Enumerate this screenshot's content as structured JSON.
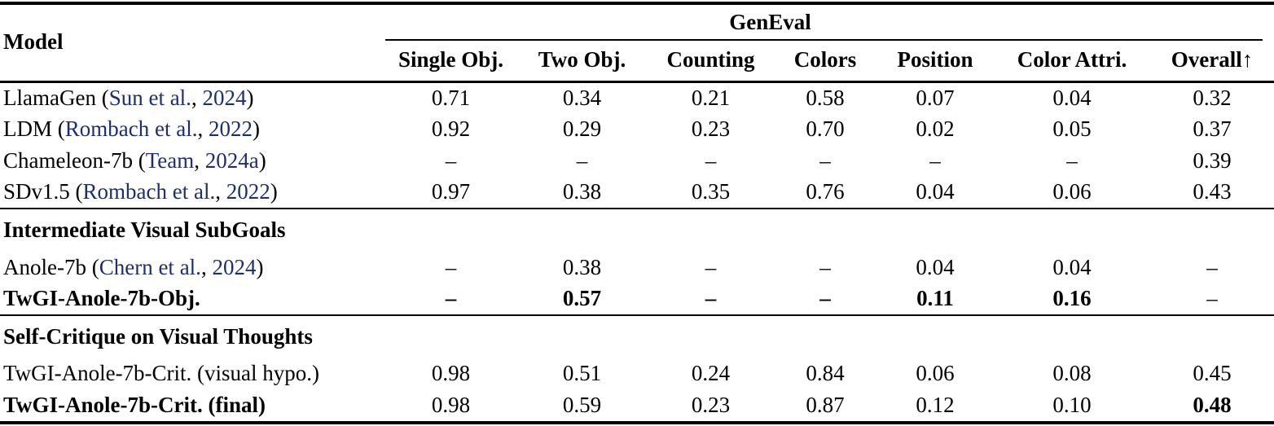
{
  "colors": {
    "citation": "#1c2f6f",
    "text": "#000000",
    "rule": "#000000"
  },
  "header": {
    "model_label": "Model",
    "group_label": "GenEval",
    "columns": [
      "Single Obj.",
      "Two Obj.",
      "Counting",
      "Colors",
      "Position",
      "Color Attri."
    ],
    "overall_label": "Overall",
    "overall_arrow": "↑"
  },
  "rows": [
    {
      "kind": "cited",
      "prefix": "LlamaGen (",
      "authors": "Sun et al.",
      "sep": ", ",
      "year": "2024",
      "suffix": ")",
      "values": [
        "0.71",
        "0.34",
        "0.21",
        "0.58",
        "0.07",
        "0.04",
        "0.32"
      ]
    },
    {
      "kind": "cited",
      "prefix": "LDM (",
      "authors": "Rombach et al.",
      "sep": ", ",
      "year": "2022",
      "suffix": ")",
      "values": [
        "0.92",
        "0.29",
        "0.23",
        "0.70",
        "0.02",
        "0.05",
        "0.37"
      ]
    },
    {
      "kind": "cited",
      "prefix": "Chameleon-7b (",
      "authors": "Team",
      "sep": ", ",
      "year": "2024a",
      "suffix": ")",
      "values": [
        "–",
        "–",
        "–",
        "–",
        "–",
        "–",
        "0.39"
      ]
    },
    {
      "kind": "cited",
      "prefix": "SDv1.5 (",
      "authors": "Rombach et al.",
      "sep": ", ",
      "year": "2022",
      "suffix": ")",
      "values": [
        "0.97",
        "0.38",
        "0.35",
        "0.76",
        "0.04",
        "0.06",
        "0.43"
      ]
    },
    {
      "kind": "section",
      "label": "Intermediate Visual SubGoals"
    },
    {
      "kind": "cited",
      "prefix": "Anole-7b (",
      "authors": "Chern et al.",
      "sep": ", ",
      "year": "2024",
      "suffix": ")",
      "values": [
        "–",
        "0.38",
        "–",
        "–",
        "0.04",
        "0.04",
        "–"
      ]
    },
    {
      "kind": "plain",
      "model": "TwGI-Anole-7b-Obj.",
      "values": [
        "–",
        "0.57",
        "–",
        "–",
        "0.11",
        "0.16",
        "–"
      ]
    },
    {
      "kind": "section",
      "label": "Self-Critique on Visual Thoughts"
    },
    {
      "kind": "plain",
      "model": "TwGI-Anole-7b-Crit. (visual hypo.)",
      "values": [
        "0.98",
        "0.51",
        "0.24",
        "0.84",
        "0.06",
        "0.08",
        "0.45"
      ]
    },
    {
      "kind": "plain",
      "model": "TwGI-Anole-7b-Crit. (final)",
      "values": [
        "0.98",
        "0.59",
        "0.23",
        "0.87",
        "0.12",
        "0.10",
        "0.48"
      ]
    }
  ]
}
